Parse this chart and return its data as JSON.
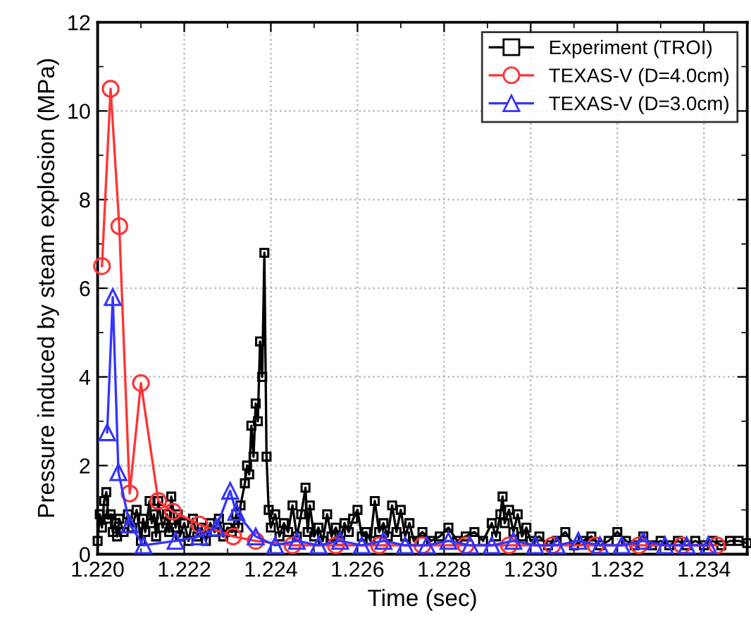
{
  "chart_data": {
    "type": "line",
    "xlabel": "Time (sec)",
    "ylabel": "Pressure induced by steam explosion (MPa)",
    "xlim": [
      1.22,
      1.235
    ],
    "ylim": [
      0,
      12
    ],
    "xticks": [
      {
        "value": 1.22,
        "label": "1.220"
      },
      {
        "value": 1.222,
        "label": "1.222"
      },
      {
        "value": 1.224,
        "label": "1.224"
      },
      {
        "value": 1.226,
        "label": "1.226"
      },
      {
        "value": 1.228,
        "label": "1.228"
      },
      {
        "value": 1.23,
        "label": "1.230"
      },
      {
        "value": 1.232,
        "label": "1.232"
      },
      {
        "value": 1.234,
        "label": "1.234"
      }
    ],
    "yticks": [
      0,
      2,
      4,
      6,
      8,
      10,
      12
    ],
    "grid": true,
    "legend": "top right",
    "series": [
      {
        "name": "Experiment (TROI)",
        "color": "#000000",
        "marker": "square",
        "x": [
          1.22,
          1.22005,
          1.2201,
          1.22015,
          1.2202,
          1.22025,
          1.2203,
          1.22035,
          1.2204,
          1.22045,
          1.2205,
          1.2206,
          1.2207,
          1.2208,
          1.2209,
          1.221,
          1.22105,
          1.2211,
          1.2212,
          1.22125,
          1.2213,
          1.22135,
          1.2214,
          1.2215,
          1.2216,
          1.22165,
          1.2217,
          1.2218,
          1.22185,
          1.2219,
          1.222,
          1.2221,
          1.2222,
          1.2223,
          1.2224,
          1.2225,
          1.2226,
          1.2227,
          1.2228,
          1.2229,
          1.223,
          1.2231,
          1.2232,
          1.22325,
          1.2233,
          1.2234,
          1.22345,
          1.2235,
          1.22355,
          1.2236,
          1.22365,
          1.2237,
          1.22375,
          1.2238,
          1.22385,
          1.2239,
          1.22395,
          1.224,
          1.2241,
          1.2242,
          1.2243,
          1.2244,
          1.2245,
          1.2246,
          1.2247,
          1.2248,
          1.22485,
          1.2249,
          1.225,
          1.2251,
          1.2252,
          1.2253,
          1.2254,
          1.2255,
          1.2256,
          1.2257,
          1.2258,
          1.2259,
          1.226,
          1.2261,
          1.2262,
          1.2263,
          1.2264,
          1.2265,
          1.2266,
          1.2267,
          1.2268,
          1.2269,
          1.227,
          1.2271,
          1.2272,
          1.2273,
          1.2275,
          1.2277,
          1.2279,
          1.2281,
          1.2283,
          1.2285,
          1.2287,
          1.2289,
          1.2291,
          1.2292,
          1.2293,
          1.22935,
          1.2294,
          1.2295,
          1.2296,
          1.2297,
          1.2298,
          1.2299,
          1.23,
          1.2302,
          1.2304,
          1.2306,
          1.2308,
          1.231,
          1.2312,
          1.2314,
          1.2316,
          1.2318,
          1.232,
          1.2322,
          1.2324,
          1.2326,
          1.2328,
          1.233,
          1.2332,
          1.2334,
          1.2336,
          1.2338,
          1.234,
          1.2342,
          1.2344,
          1.2346,
          1.2348,
          1.235
        ],
        "values": [
          0.3,
          0.9,
          0.6,
          1.2,
          1.4,
          0.8,
          0.9,
          0.5,
          0.7,
          0.4,
          0.8,
          0.5,
          0.9,
          0.6,
          1.0,
          0.3,
          0.8,
          0.5,
          1.2,
          0.7,
          0.9,
          0.4,
          1.2,
          0.6,
          0.9,
          0.5,
          1.3,
          0.6,
          0.9,
          0.4,
          0.7,
          0.3,
          0.8,
          0.4,
          0.6,
          0.3,
          0.7,
          0.5,
          0.8,
          0.4,
          0.6,
          0.5,
          0.9,
          0.6,
          1.1,
          1.6,
          2.0,
          1.8,
          2.9,
          2.2,
          3.4,
          3.0,
          4.8,
          4.0,
          6.8,
          2.2,
          1.0,
          0.6,
          0.9,
          0.4,
          0.7,
          0.5,
          1.1,
          0.4,
          0.9,
          1.5,
          0.5,
          1.1,
          0.4,
          0.6,
          0.3,
          0.9,
          0.4,
          0.6,
          0.3,
          0.7,
          0.5,
          0.8,
          1.0,
          0.4,
          0.5,
          0.3,
          1.2,
          0.5,
          0.7,
          0.4,
          1.1,
          0.5,
          1.0,
          0.4,
          0.7,
          0.3,
          0.5,
          0.3,
          0.4,
          0.6,
          0.3,
          0.4,
          0.5,
          0.3,
          0.7,
          0.4,
          0.9,
          1.3,
          0.7,
          1.0,
          0.5,
          0.9,
          0.4,
          0.6,
          0.3,
          0.4,
          0.2,
          0.3,
          0.5,
          0.2,
          0.3,
          0.4,
          0.2,
          0.3,
          0.5,
          0.3,
          0.2,
          0.4,
          0.2,
          0.3,
          0.2,
          0.3,
          0.2,
          0.3,
          0.2,
          0.3,
          0.2,
          0.3,
          0.3,
          0.25
        ]
      },
      {
        "name": "TEXAS-V (D=4.0cm)",
        "color": "#ff3333",
        "marker": "circle",
        "x": [
          1.2201,
          1.2203,
          1.2205,
          1.22074,
          1.221,
          1.2214,
          1.22174,
          1.22235,
          1.22313,
          1.22365,
          1.2245,
          1.2255,
          1.2265,
          1.2275,
          1.2285,
          1.2295,
          1.2305,
          1.2315,
          1.2325,
          1.2335,
          1.2343
        ],
        "values": [
          6.5,
          10.5,
          7.4,
          1.37,
          3.86,
          1.2,
          0.96,
          0.67,
          0.4,
          0.3,
          0.2,
          0.2,
          0.2,
          0.2,
          0.2,
          0.2,
          0.2,
          0.2,
          0.2,
          0.2,
          0.2
        ]
      },
      {
        "name": "TEXAS-V (D=3.0cm)",
        "color": "#3333ff",
        "marker": "triangle",
        "x": [
          1.22022,
          1.22035,
          1.22048,
          1.22074,
          1.22106,
          1.2218,
          1.22235,
          1.22274,
          1.22306,
          1.2232,
          1.22365,
          1.2241,
          1.2246,
          1.2251,
          1.2256,
          1.2261,
          1.2266,
          1.2271,
          1.2276,
          1.2281,
          1.2286,
          1.2291,
          1.2296,
          1.2301,
          1.2306,
          1.2311,
          1.2316,
          1.2321,
          1.2326,
          1.2331,
          1.2336,
          1.2341
        ],
        "values": [
          2.75,
          5.8,
          1.85,
          0.67,
          0.2,
          0.3,
          0.4,
          0.6,
          1.43,
          0.95,
          0.4,
          0.2,
          0.3,
          0.2,
          0.3,
          0.2,
          0.3,
          0.2,
          0.2,
          0.3,
          0.2,
          0.2,
          0.3,
          0.2,
          0.2,
          0.3,
          0.2,
          0.2,
          0.3,
          0.2,
          0.2,
          0.2
        ]
      }
    ]
  }
}
